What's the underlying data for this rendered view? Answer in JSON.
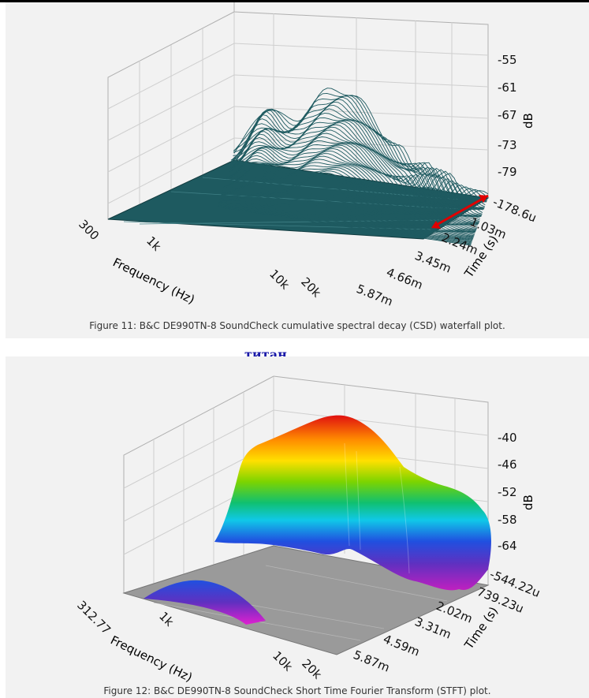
{
  "annotation": "титан",
  "chart_data": [
    {
      "type": "waterfall",
      "caption": "Figure 11: B&C DE990TN-8 SoundCheck cumulative spectral decay (CSD) waterfall plot.",
      "xlabel": "Frequency (Hz)",
      "ylabel": "Time (s)",
      "zlabel": "dB",
      "x_ticks": [
        "300",
        "1k",
        "10k",
        "20k"
      ],
      "time_ticks": [
        "-178.6u",
        "1.03m",
        "2.24m",
        "3.45m",
        "4.66m",
        "5.87m"
      ],
      "z_ticks": [
        "-55",
        "-61",
        "-67",
        "-73",
        "-79"
      ],
      "colors": {
        "surface": "#1e5a60",
        "floor": "#1e5a60",
        "arrow": "#e00000"
      },
      "log_x": true
    },
    {
      "type": "surface",
      "caption": "Figure 12: B&C DE990TN-8 SoundCheck Short Time Fourier Transform (STFT) plot.",
      "xlabel": "Frequency (Hz)",
      "ylabel": "Time (s)",
      "zlabel": "dB",
      "x_ticks": [
        "312.77",
        "1k",
        "10k",
        "20k"
      ],
      "time_ticks": [
        "-544.22u",
        "739.23u",
        "2.02m",
        "3.31m",
        "4.59m",
        "5.87m"
      ],
      "z_ticks": [
        "-40",
        "-46",
        "-52",
        "-58",
        "-64"
      ],
      "colors": {
        "floor": "#9a9a9a",
        "peak": "#e02010",
        "base": "#b020c0"
      },
      "log_x": true
    }
  ]
}
